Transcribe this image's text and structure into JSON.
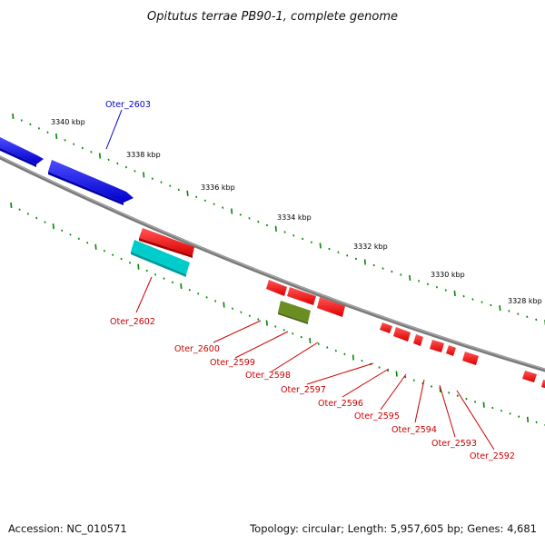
{
  "title": "Opitutus terrae PB90-1, complete genome",
  "footer": {
    "accession": "Accession: NC_010571",
    "stats": "Topology: circular; Length: 5,957,605 bp; Genes: 4,681"
  },
  "scale_labels": [
    "3340 kbp",
    "3338 kbp",
    "3336 kbp",
    "3334 kbp",
    "3332 kbp",
    "3330 kbp",
    "3328 kbp"
  ],
  "genes": [
    {
      "name": "Oter_2603",
      "color": "#0000cc"
    },
    {
      "name": "Oter_2602",
      "color": "#cc0000"
    },
    {
      "name": "Oter_2600",
      "color": "#cc0000"
    },
    {
      "name": "Oter_2599",
      "color": "#cc0000"
    },
    {
      "name": "Oter_2598",
      "color": "#cc0000"
    },
    {
      "name": "Oter_2597",
      "color": "#cc0000"
    },
    {
      "name": "Oter_2596",
      "color": "#cc0000"
    },
    {
      "name": "Oter_2595",
      "color": "#cc0000"
    },
    {
      "name": "Oter_2594",
      "color": "#cc0000"
    },
    {
      "name": "Oter_2593",
      "color": "#cc0000"
    },
    {
      "name": "Oter_2592",
      "color": "#cc0000"
    }
  ],
  "colors": {
    "forward_cds": "#0000ee",
    "reverse_cds": "#ee0000",
    "rna": "#00cccc",
    "other": "#668800",
    "backbone": "#7a7a7a",
    "ticks": "#008800"
  }
}
